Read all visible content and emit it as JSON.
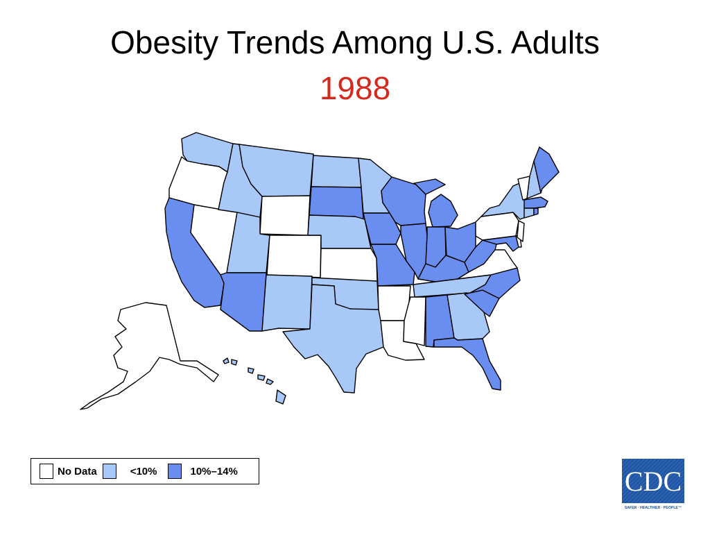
{
  "title": "Obesity Trends Among U.S. Adults",
  "year": "1988",
  "colors": {
    "no_data": "#ffffff",
    "lt10": "#a8c8f7",
    "10to14": "#6a8ef0",
    "year_text": "#d42a1e",
    "cdc_blue": "#1f56a6"
  },
  "map": {
    "states": [
      {
        "name": "Washington",
        "category": "lt10"
      },
      {
        "name": "Oregon",
        "category": "no_data"
      },
      {
        "name": "California",
        "category": "10to14"
      },
      {
        "name": "Nevada",
        "category": "no_data"
      },
      {
        "name": "Idaho",
        "category": "lt10"
      },
      {
        "name": "Montana",
        "category": "lt10"
      },
      {
        "name": "Wyoming",
        "category": "no_data"
      },
      {
        "name": "Utah",
        "category": "lt10"
      },
      {
        "name": "Arizona",
        "category": "10to14"
      },
      {
        "name": "Colorado",
        "category": "no_data"
      },
      {
        "name": "New Mexico",
        "category": "lt10"
      },
      {
        "name": "North Dakota",
        "category": "lt10"
      },
      {
        "name": "South Dakota",
        "category": "10to14"
      },
      {
        "name": "Nebraska",
        "category": "lt10"
      },
      {
        "name": "Kansas",
        "category": "no_data"
      },
      {
        "name": "Oklahoma",
        "category": "lt10"
      },
      {
        "name": "Texas",
        "category": "lt10"
      },
      {
        "name": "Minnesota",
        "category": "lt10"
      },
      {
        "name": "Iowa",
        "category": "10to14"
      },
      {
        "name": "Missouri",
        "category": "10to14"
      },
      {
        "name": "Arkansas",
        "category": "no_data"
      },
      {
        "name": "Louisiana",
        "category": "no_data"
      },
      {
        "name": "Wisconsin",
        "category": "10to14"
      },
      {
        "name": "Illinois",
        "category": "10to14"
      },
      {
        "name": "Michigan",
        "category": "10to14"
      },
      {
        "name": "Indiana",
        "category": "10to14"
      },
      {
        "name": "Ohio",
        "category": "10to14"
      },
      {
        "name": "Kentucky",
        "category": "10to14"
      },
      {
        "name": "Tennessee",
        "category": "lt10"
      },
      {
        "name": "Mississippi",
        "category": "no_data"
      },
      {
        "name": "Alabama",
        "category": "10to14"
      },
      {
        "name": "Georgia",
        "category": "lt10"
      },
      {
        "name": "Florida",
        "category": "10to14"
      },
      {
        "name": "South Carolina",
        "category": "10to14"
      },
      {
        "name": "North Carolina",
        "category": "10to14"
      },
      {
        "name": "Virginia",
        "category": "no_data"
      },
      {
        "name": "West Virginia",
        "category": "10to14"
      },
      {
        "name": "Maryland",
        "category": "10to14"
      },
      {
        "name": "Delaware",
        "category": "no_data"
      },
      {
        "name": "Pennsylvania",
        "category": "no_data"
      },
      {
        "name": "New Jersey",
        "category": "no_data"
      },
      {
        "name": "New York",
        "category": "lt10"
      },
      {
        "name": "Connecticut",
        "category": "lt10"
      },
      {
        "name": "Rhode Island",
        "category": "10to14"
      },
      {
        "name": "Massachusetts",
        "category": "10to14"
      },
      {
        "name": "Vermont",
        "category": "no_data"
      },
      {
        "name": "New Hampshire",
        "category": "lt10"
      },
      {
        "name": "Maine",
        "category": "10to14"
      },
      {
        "name": "Alaska",
        "category": "no_data"
      },
      {
        "name": "Hawaii",
        "category": "lt10"
      }
    ]
  },
  "legend": {
    "items": [
      {
        "key": "no_data",
        "label": "No Data"
      },
      {
        "key": "lt10",
        "label": "<10%"
      },
      {
        "key": "10to14",
        "label": "10%–14%"
      }
    ]
  },
  "logo": {
    "text": "CDC",
    "tagline": "SAFER · HEALTHIER · PEOPLE™"
  }
}
